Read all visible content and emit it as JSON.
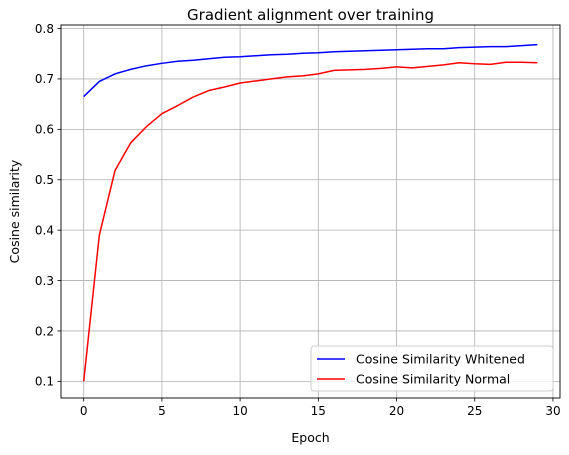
{
  "chart_data": {
    "type": "line",
    "title": "Gradient alignment over training",
    "xlabel": "Epoch",
    "ylabel": "Cosine similarity",
    "xlim": [
      -1.45,
      30.45
    ],
    "ylim": [
      0.067,
      0.807
    ],
    "xticks": [
      0,
      5,
      10,
      15,
      20,
      25,
      30
    ],
    "yticks": [
      0.1,
      0.2,
      0.3,
      0.4,
      0.5,
      0.6,
      0.7,
      0.8
    ],
    "xtick_labels": [
      "0",
      "5",
      "10",
      "15",
      "20",
      "25",
      "30"
    ],
    "ytick_labels": [
      "0.1",
      "0.2",
      "0.3",
      "0.4",
      "0.5",
      "0.6",
      "0.7",
      "0.8"
    ],
    "grid": true,
    "legend_position": "lower-right",
    "x": [
      0,
      1,
      2,
      3,
      4,
      5,
      6,
      7,
      8,
      9,
      10,
      11,
      12,
      13,
      14,
      15,
      16,
      17,
      18,
      19,
      20,
      21,
      22,
      23,
      24,
      25,
      26,
      27,
      28,
      29
    ],
    "series": [
      {
        "name": "Cosine Similarity Whitened",
        "color": "#0000ff",
        "values": [
          0.665,
          0.695,
          0.71,
          0.719,
          0.726,
          0.731,
          0.735,
          0.737,
          0.74,
          0.743,
          0.744,
          0.746,
          0.748,
          0.749,
          0.751,
          0.752,
          0.754,
          0.755,
          0.756,
          0.757,
          0.758,
          0.759,
          0.76,
          0.76,
          0.762,
          0.763,
          0.764,
          0.764,
          0.766,
          0.768
        ]
      },
      {
        "name": "Cosine Similarity Normal",
        "color": "#ff0000",
        "values": [
          0.1,
          0.39,
          0.518,
          0.573,
          0.605,
          0.631,
          0.647,
          0.664,
          0.677,
          0.684,
          0.692,
          0.696,
          0.7,
          0.704,
          0.706,
          0.71,
          0.717,
          0.718,
          0.719,
          0.721,
          0.724,
          0.722,
          0.725,
          0.728,
          0.732,
          0.73,
          0.729,
          0.733,
          0.733,
          0.732
        ]
      }
    ]
  }
}
